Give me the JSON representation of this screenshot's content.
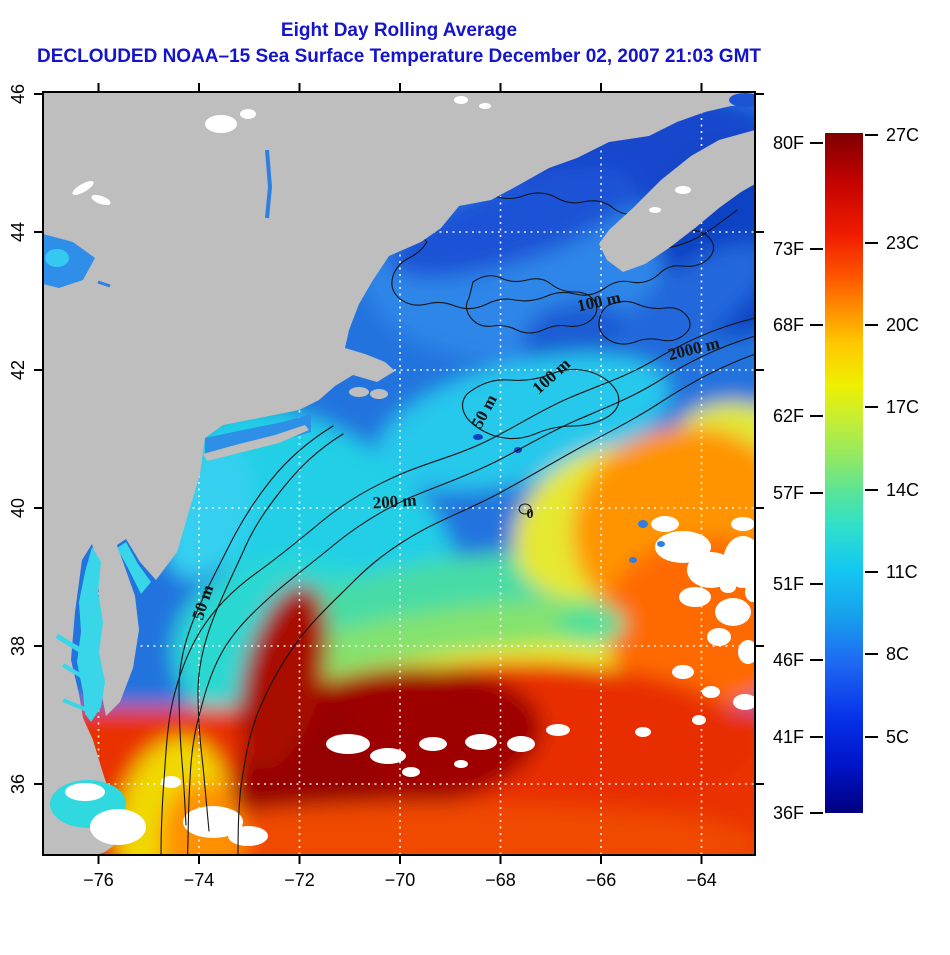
{
  "title": {
    "line1": "Eight Day Rolling Average",
    "line2": "DECLOUDED NOAA–15 Sea Surface Temperature December 02, 2007 21:03 GMT",
    "color": "#1414CC"
  },
  "map": {
    "x_ticks": [
      "−76",
      "−74",
      "−72",
      "−70",
      "−68",
      "−66",
      "−64"
    ],
    "y_ticks": [
      "46",
      "44",
      "42",
      "40",
      "38",
      "36"
    ],
    "contour_labels": [
      "100 m",
      "2000 m",
      "100 m",
      "50 m",
      "200 m",
      "50 m",
      "0"
    ],
    "colors": {
      "land": "#BEBEBE",
      "grid": "#FFFFFF",
      "contour": "#141414",
      "border": "#000000",
      "cold_water": "#1245C8",
      "warm_water": "#E93200",
      "cloud": "#FFFFFF"
    }
  },
  "colorbar": {
    "f_labels": [
      "80F",
      "73F",
      "68F",
      "62F",
      "57F",
      "51F",
      "46F",
      "41F",
      "36F"
    ],
    "c_labels": [
      "27C",
      "23C",
      "20C",
      "17C",
      "14C",
      "11C",
      "8C",
      "5C"
    ],
    "gradient_stops": [
      [
        "0%",
        "#000080"
      ],
      [
        "7%",
        "#0014C8"
      ],
      [
        "14%",
        "#0632E8"
      ],
      [
        "22%",
        "#1E68F2"
      ],
      [
        "29%",
        "#18A0EC"
      ],
      [
        "36%",
        "#14C8F0"
      ],
      [
        "42%",
        "#2FE0CC"
      ],
      [
        "47%",
        "#56E49A"
      ],
      [
        "52%",
        "#8FE866"
      ],
      [
        "58%",
        "#C6EE32"
      ],
      [
        "63%",
        "#EFEF00"
      ],
      [
        "69%",
        "#FFC800"
      ],
      [
        "73%",
        "#FF9C00"
      ],
      [
        "79%",
        "#FF5400"
      ],
      [
        "85%",
        "#F01C00"
      ],
      [
        "93%",
        "#C20200"
      ],
      [
        "100%",
        "#7E0000"
      ]
    ]
  },
  "chart_data": {
    "type": "heatmap",
    "title": "Eight Day Rolling Average",
    "subtitle": "DECLOUDED NOAA-15 Sea Surface Temperature December 02, 2007 21:03 GMT",
    "x_ticks": [
      -76,
      -74,
      -72,
      -70,
      -68,
      -66,
      -64
    ],
    "y_ticks": [
      36,
      38,
      40,
      42,
      44,
      46
    ],
    "xlim": [
      -77.2,
      -62.9
    ],
    "ylim": [
      34.9,
      46.0
    ],
    "xlabel": "",
    "ylabel": "",
    "grid": true,
    "legend_position": "right",
    "colorbar_scale": {
      "fahrenheit_ticks": [
        80,
        73,
        68,
        62,
        57,
        51,
        46,
        41,
        36
      ],
      "celsius_ticks": [
        27,
        23,
        20,
        17,
        14,
        11,
        8,
        5
      ]
    },
    "contour_levels_m": [
      0,
      50,
      100,
      200,
      2000
    ]
  }
}
